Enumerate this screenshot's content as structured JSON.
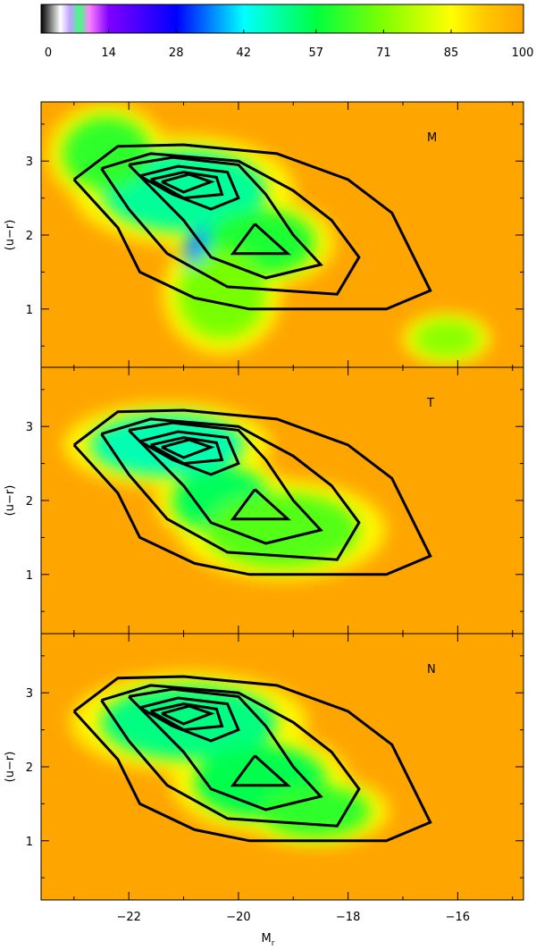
{
  "chart_data": {
    "type": "heatmap",
    "colorbar": {
      "ticks": [
        "0",
        "14",
        "28",
        "42",
        "57",
        "71",
        "85",
        "100"
      ],
      "range": [
        0,
        100
      ],
      "colors": [
        "#000000",
        "#ffffff",
        "#7f00ff",
        "#0000ff",
        "#00ffff",
        "#00ff00",
        "#ffff00",
        "#ffa500"
      ]
    },
    "xlabel": "M",
    "xlabel_sub": "r",
    "ylabel": "(u−r)",
    "xlim": [
      -23.6,
      -14.8
    ],
    "ylim": [
      0.2,
      3.8
    ],
    "x_ticks": [
      "-22",
      "-20",
      "-18",
      "-16"
    ],
    "y_ticks": [
      "1",
      "2",
      "3"
    ],
    "panels": [
      {
        "tag": "M",
        "background": "#ffa500",
        "blobs": [
          {
            "x": -21.0,
            "y": 2.6,
            "value": 50,
            "sx": 1.5,
            "sy": 0.55
          },
          {
            "x": -20.5,
            "y": 1.75,
            "value": 35,
            "sx": 0.5,
            "sy": 0.35
          },
          {
            "x": -19.6,
            "y": 1.9,
            "value": 60,
            "sx": 1.0,
            "sy": 0.45
          },
          {
            "x": -22.4,
            "y": 3.1,
            "value": 62,
            "sx": 0.8,
            "sy": 0.5
          },
          {
            "x": -20.3,
            "y": 1.2,
            "value": 70,
            "sx": 0.8,
            "sy": 0.6
          },
          {
            "x": -16.2,
            "y": 0.6,
            "value": 72,
            "sx": 0.6,
            "sy": 0.25
          }
        ]
      },
      {
        "tag": "T",
        "background": "#ffa500",
        "blobs": [
          {
            "x": -20.9,
            "y": 2.7,
            "value": 20,
            "sx": 0.55,
            "sy": 0.22
          },
          {
            "x": -21.3,
            "y": 2.75,
            "value": 48,
            "sx": 1.4,
            "sy": 0.42
          },
          {
            "x": -20.3,
            "y": 2.0,
            "value": 55,
            "sx": 0.9,
            "sy": 0.45
          },
          {
            "x": -19.2,
            "y": 1.6,
            "value": 66,
            "sx": 1.4,
            "sy": 0.5
          }
        ]
      },
      {
        "tag": "N",
        "background": "#ffa500",
        "blobs": [
          {
            "x": -20.4,
            "y": 2.65,
            "value": 22,
            "sx": 0.6,
            "sy": 0.22
          },
          {
            "x": -20.9,
            "y": 2.6,
            "value": 52,
            "sx": 1.6,
            "sy": 0.5
          },
          {
            "x": -19.6,
            "y": 1.8,
            "value": 56,
            "sx": 1.2,
            "sy": 0.5
          },
          {
            "x": -18.6,
            "y": 1.4,
            "value": 62,
            "sx": 1.0,
            "sy": 0.35
          }
        ]
      }
    ],
    "contours": [
      [
        [
          -23.0,
          2.75
        ],
        [
          -22.2,
          3.2
        ],
        [
          -21.0,
          3.22
        ],
        [
          -19.3,
          3.1
        ],
        [
          -18.0,
          2.75
        ],
        [
          -17.2,
          2.3
        ],
        [
          -16.5,
          1.25
        ],
        [
          -17.3,
          1.0
        ],
        [
          -19.8,
          1.0
        ],
        [
          -20.8,
          1.15
        ],
        [
          -21.8,
          1.5
        ],
        [
          -22.2,
          2.1
        ],
        [
          -23.0,
          2.75
        ]
      ],
      [
        [
          -22.5,
          2.9
        ],
        [
          -21.6,
          3.1
        ],
        [
          -20.0,
          3.0
        ],
        [
          -19.0,
          2.6
        ],
        [
          -18.3,
          2.2
        ],
        [
          -17.8,
          1.7
        ],
        [
          -18.2,
          1.2
        ],
        [
          -20.2,
          1.3
        ],
        [
          -21.3,
          1.75
        ],
        [
          -22.0,
          2.35
        ],
        [
          -22.5,
          2.9
        ]
      ],
      [
        [
          -22.0,
          2.95
        ],
        [
          -21.2,
          3.05
        ],
        [
          -20.0,
          2.95
        ],
        [
          -19.5,
          2.55
        ],
        [
          -19.0,
          2.0
        ],
        [
          -18.5,
          1.6
        ],
        [
          -19.5,
          1.42
        ],
        [
          -20.5,
          1.7
        ],
        [
          -21.0,
          2.2
        ],
        [
          -22.0,
          2.95
        ]
      ],
      [
        [
          -21.8,
          2.8
        ],
        [
          -21.1,
          2.93
        ],
        [
          -20.2,
          2.85
        ],
        [
          -20.0,
          2.5
        ],
        [
          -20.5,
          2.35
        ],
        [
          -21.2,
          2.55
        ],
        [
          -21.8,
          2.8
        ]
      ],
      [
        [
          -21.6,
          2.75
        ],
        [
          -21.0,
          2.85
        ],
        [
          -20.4,
          2.78
        ],
        [
          -20.3,
          2.55
        ],
        [
          -21.0,
          2.5
        ],
        [
          -21.6,
          2.75
        ]
      ],
      [
        [
          -21.4,
          2.72
        ],
        [
          -20.9,
          2.82
        ],
        [
          -20.5,
          2.72
        ],
        [
          -21.0,
          2.58
        ],
        [
          -21.4,
          2.72
        ]
      ],
      [
        [
          -19.7,
          2.15
        ],
        [
          -19.1,
          1.75
        ],
        [
          -20.1,
          1.75
        ],
        [
          -19.7,
          2.15
        ]
      ]
    ]
  }
}
